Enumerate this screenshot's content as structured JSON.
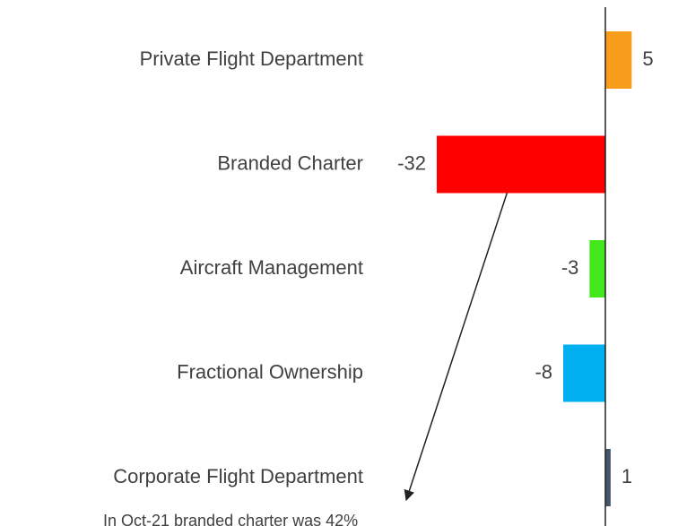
{
  "chart_data": {
    "type": "barh",
    "categories": [
      "Private Flight Department",
      "Branded Charter",
      "Aircraft Management",
      "Fractional Ownership",
      "Corporate Flight Department"
    ],
    "values": [
      5,
      -32,
      -3,
      -8,
      1
    ],
    "colors": [
      "#f89c1c",
      "#ff0000",
      "#44e61c",
      "#00b0f0",
      "#44546a"
    ],
    "xlim": [
      -40,
      10
    ],
    "annotation": "In Oct-21 branded charter was 42%"
  }
}
